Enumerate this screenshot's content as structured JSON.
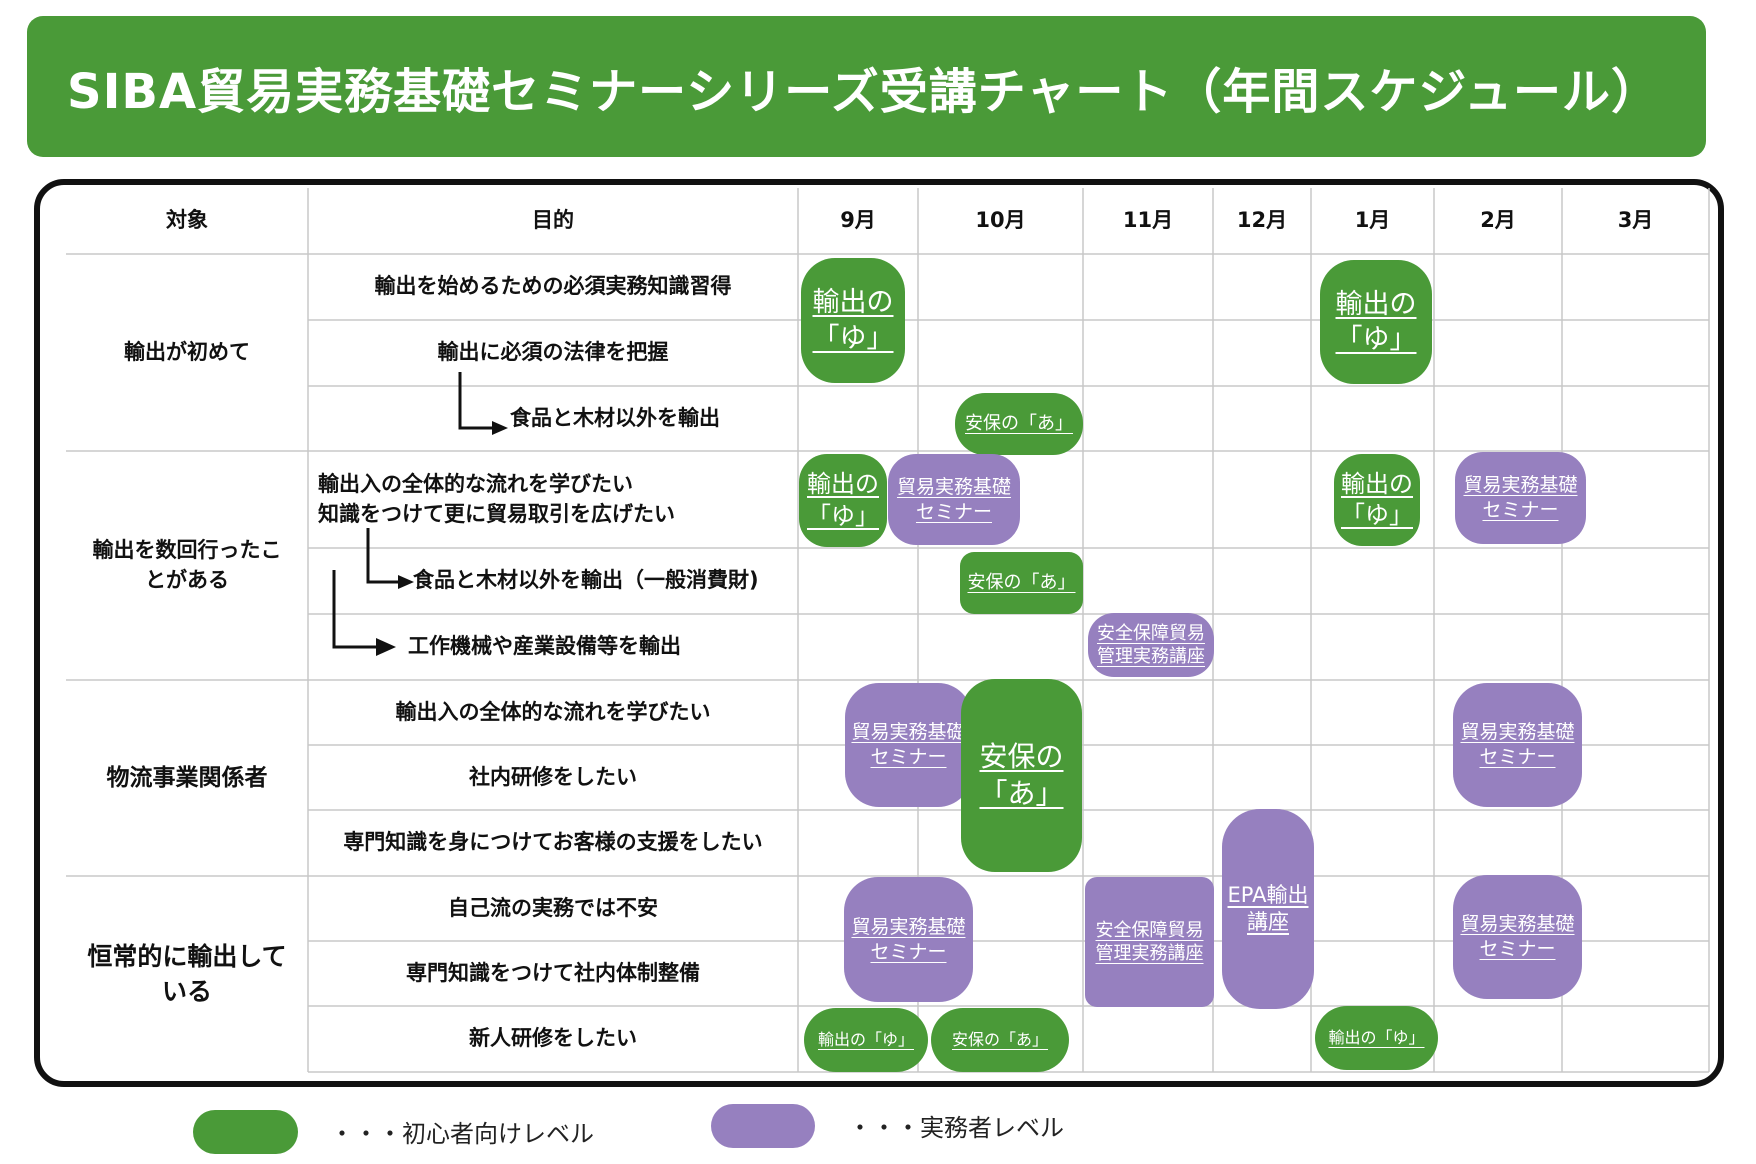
{
  "title": "SIBA貿易実務基礎セミナーシリーズ受講チャート（年間スケジュール）",
  "header": {
    "target": "対象",
    "purpose": "目的",
    "months": [
      "9月",
      "10月",
      "11月",
      "12月",
      "1月",
      "2月",
      "3月"
    ]
  },
  "groups": [
    {
      "label": "輸出が初めて"
    },
    {
      "label": "輸出を数回行ったこ\nとがある"
    },
    {
      "label": "物流事業関係者"
    },
    {
      "label": "恒常的に輸出して\nいる"
    }
  ],
  "purposes": [
    "輸出を始めるための必須実務知識習得",
    "輸出に必須の法律を把握",
    "食品と木材以外を輸出",
    "輸出入の全体的な流れを学びたい\n知識をつけて更に貿易取引を広げたい",
    "食品と木材以外を輸出（一般消費財)",
    "工作機械や産業設備等を輸出",
    "輸出入の全体的な流れを学びたい",
    "社内研修をしたい",
    "専門知識を身につけてお客様の支援をしたい",
    "自己流の実務では不安",
    "専門知識をつけて社内体制整備",
    "新人研修をしたい"
  ],
  "courses": {
    "yu_large": "輸出の\n「ゆ」",
    "yu_small": "輸出の「ゆ」",
    "a_large": "安保の\n「あ」",
    "a_small": "安保の「あ」",
    "boeki": "貿易実務基礎\nセミナー",
    "anzen": "安全保障貿易\n管理実務講座",
    "epa": "EPA輸出\n講座"
  },
  "legend": {
    "beginner": "・・・初心者向けレベル",
    "practitioner": "・・・実務者レベル"
  },
  "colors": {
    "green": "#4a9a38",
    "purple": "#9680bf",
    "grid": "#c8c8c8",
    "frame": "#111111"
  }
}
